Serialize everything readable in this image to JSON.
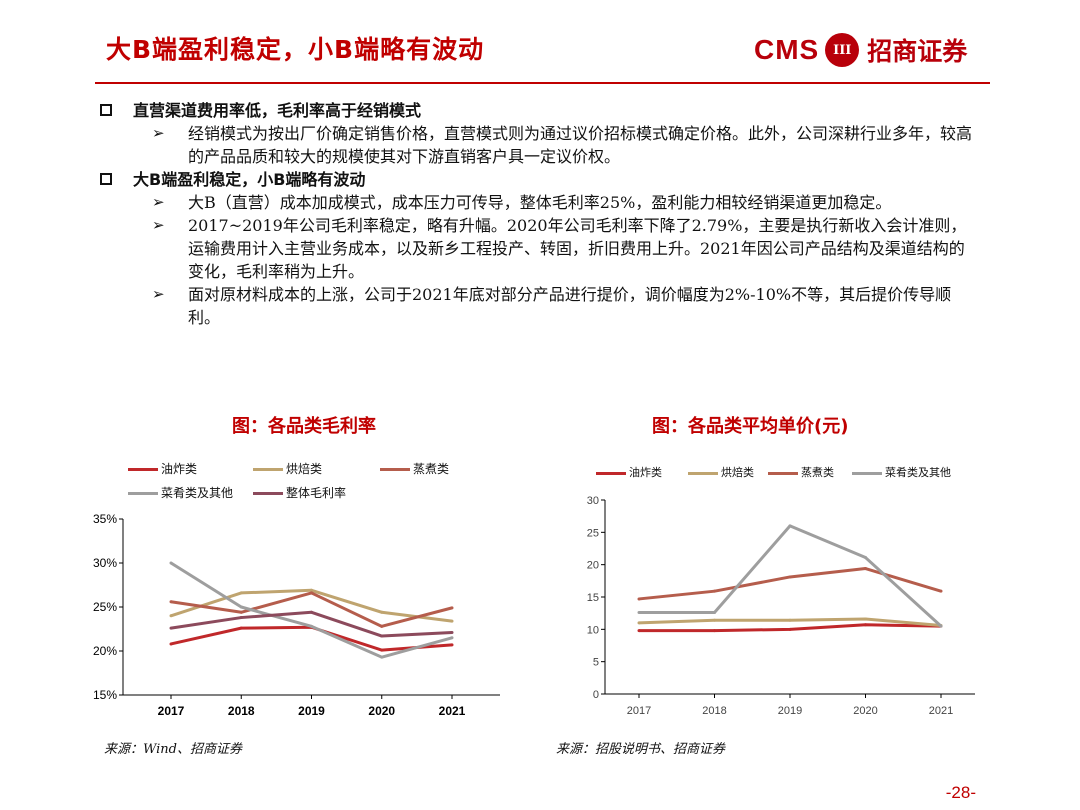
{
  "header": {
    "title": "大B端盈利稳定，小B端略有波动",
    "logo_cms": "CMS",
    "logo_emblem": "III",
    "logo_cn": "招商证券"
  },
  "bullets": [
    {
      "heading": "直营渠道费用率低，毛利率高于经销模式",
      "subs": [
        "经销模式为按出厂价确定销售价格，直营模式则为通过议价招标模式确定价格。此外，公司深耕行业多年，较高的产品品质和较大的规模使其对下游直销客户具一定议价权。"
      ]
    },
    {
      "heading": "大B端盈利稳定，小B端略有波动",
      "subs": [
        "大B（直营）成本加成模式，成本压力可传导，整体毛利率25%，盈利能力相较经销渠道更加稳定。",
        "2017~2019年公司毛利率稳定，略有升幅。2020年公司毛利率下降了2.79%，主要是执行新收入会计准则，运输费用计入主营业务成本，以及新乡工程投产、转固，折旧费用上升。2021年因公司产品结构及渠道结构的变化，毛利率稍为上升。",
        "面对原材料成本的上涨，公司于2021年底对部分产品进行提价，调价幅度为2%-10%不等，其后提价传导顺利。"
      ]
    }
  ],
  "arrow_glyph": "➢",
  "chart_data": [
    {
      "type": "line",
      "title": "图：各品类毛利率",
      "categories": [
        "2017",
        "2018",
        "2019",
        "2020",
        "2021"
      ],
      "yticks": [
        "15%",
        "20%",
        "25%",
        "30%",
        "35%"
      ],
      "ylim": [
        15,
        35
      ],
      "series": [
        {
          "name": "油炸类",
          "color": "#c0282a",
          "values": [
            20.8,
            22.6,
            22.7,
            20.1,
            20.7
          ]
        },
        {
          "name": "烘焙类",
          "color": "#bfa46f",
          "values": [
            24.0,
            26.6,
            26.9,
            24.4,
            23.4
          ]
        },
        {
          "name": "蒸煮类",
          "color": "#b55d4c",
          "values": [
            25.6,
            24.4,
            26.6,
            22.8,
            24.9
          ]
        },
        {
          "name": "菜肴类及其他",
          "color": "#9e9e9e",
          "values": [
            30.0,
            25.0,
            22.8,
            19.3,
            21.5
          ]
        },
        {
          "name": "整体毛利率",
          "color": "#8c4a5c",
          "values": [
            22.6,
            23.8,
            24.4,
            21.7,
            22.1
          ]
        }
      ],
      "source": "来源：Wind、招商证券"
    },
    {
      "type": "line",
      "title": "图：各品类平均单价(元)",
      "categories": [
        "2017",
        "2018",
        "2019",
        "2020",
        "2021"
      ],
      "yticks": [
        "0",
        "5",
        "10",
        "15",
        "20",
        "25",
        "30"
      ],
      "ylim": [
        0,
        30
      ],
      "series": [
        {
          "name": "油炸类",
          "color": "#c0282a",
          "values": [
            9.8,
            9.8,
            10.0,
            10.7,
            10.5
          ]
        },
        {
          "name": "烘焙类",
          "color": "#bfa46f",
          "values": [
            11.0,
            11.4,
            11.4,
            11.6,
            10.6
          ]
        },
        {
          "name": "蒸煮类",
          "color": "#b55d4c",
          "values": [
            14.7,
            15.9,
            18.1,
            19.4,
            15.9
          ]
        },
        {
          "name": "菜肴类及其他",
          "color": "#9e9e9e",
          "values": [
            12.6,
            12.6,
            26.0,
            21.1,
            10.5
          ]
        }
      ],
      "source": "来源：招股说明书、招商证券"
    }
  ],
  "page_number": "-28-"
}
